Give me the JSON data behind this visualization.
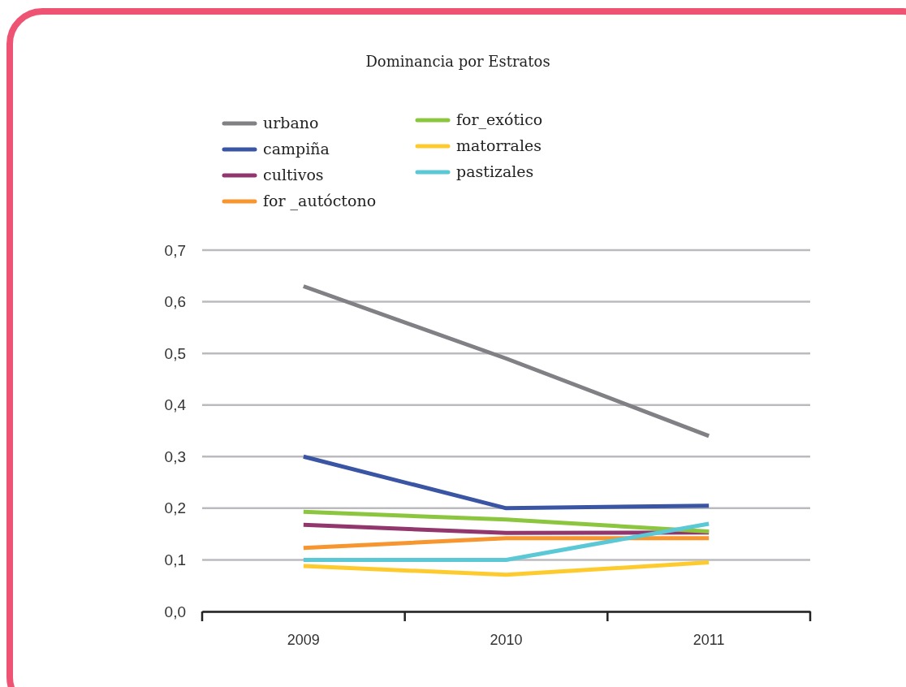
{
  "chart_data": {
    "type": "line",
    "title": "Dominancia por Estratos",
    "categories": [
      "2009",
      "2010",
      "2011"
    ],
    "series": [
      {
        "name": "urbano",
        "color": "#808085",
        "values": [
          0.63,
          0.49,
          0.34
        ]
      },
      {
        "name": "campiña",
        "color": "#3a55a4",
        "values": [
          0.3,
          0.2,
          0.205
        ]
      },
      {
        "name": "cultivos",
        "color": "#92366e",
        "values": [
          0.168,
          0.152,
          0.153
        ]
      },
      {
        "name": "for _autóctono",
        "color": "#f7952f",
        "values": [
          0.123,
          0.142,
          0.142
        ]
      },
      {
        "name": "for_exótico",
        "color": "#8cc63f",
        "values": [
          0.193,
          0.178,
          0.155
        ]
      },
      {
        "name": "matorrales",
        "color": "#fecb2f",
        "values": [
          0.088,
          0.071,
          0.095
        ]
      },
      {
        "name": "pastizales",
        "color": "#5bc8d6",
        "values": [
          0.1,
          0.1,
          0.17
        ]
      }
    ],
    "ylim": [
      0,
      0.7
    ],
    "yticks": [
      {
        "value": 0,
        "label": "0,0"
      },
      {
        "value": 0.1,
        "label": "0,1"
      },
      {
        "value": 0.2,
        "label": "0,2"
      },
      {
        "value": 0.3,
        "label": "0,3"
      },
      {
        "value": 0.4,
        "label": "0,4"
      },
      {
        "value": 0.5,
        "label": "0,5"
      },
      {
        "value": 0.6,
        "label": "0,6"
      },
      {
        "value": 0.7,
        "label": "0,7"
      }
    ],
    "grid": "y",
    "legend": "top left",
    "marker": "none",
    "line_style": "solid"
  }
}
